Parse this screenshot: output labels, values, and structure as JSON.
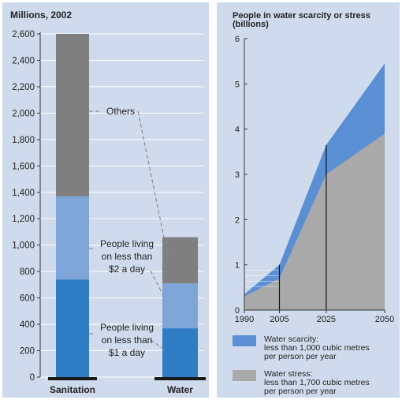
{
  "chart_data": [
    {
      "type": "bar",
      "stacked": true,
      "title": "Millions, 2002",
      "categories": [
        "Sanitation",
        "Water"
      ],
      "ylim": [
        0,
        2600
      ],
      "yticks": [
        0,
        200,
        400,
        600,
        800,
        1000,
        1200,
        1400,
        1600,
        1800,
        2000,
        2200,
        2400,
        2600
      ],
      "ytick_labels": [
        "0",
        "200",
        "400",
        "600",
        "800",
        "1,000",
        "1,200",
        "1,400",
        "1,600",
        "1,800",
        "2,000",
        "2,200",
        "2,400",
        "2,600"
      ],
      "series": [
        {
          "values": [
            740,
            370
          ],
          "color": "#2e7cc4"
        },
        {
          "values": [
            630,
            340
          ],
          "color": "#7ea4d8"
        },
        {
          "values": [
            1230,
            350
          ],
          "color": "#7f7f7f"
        }
      ],
      "annotations": {
        "others": "Others",
        "two_dollar": [
          "People living",
          "on less than",
          "$2 a day"
        ],
        "one_dollar": [
          "People living",
          "on less than",
          "$1 a day"
        ]
      },
      "grid": true
    },
    {
      "type": "area",
      "title": [
        "People in water scarcity or stress",
        "(billions)"
      ],
      "x": [
        1990,
        2005,
        2025,
        2050
      ],
      "xticks": [
        "1990",
        "2005",
        "2025",
        "2050"
      ],
      "ylim": [
        0,
        6
      ],
      "yticks": [
        "0",
        "1",
        "2",
        "3",
        "4",
        "5",
        "6"
      ],
      "series": [
        {
          "values": [
            0.3,
            0.7,
            3.0,
            3.9
          ],
          "color": "#a9a9a9"
        },
        {
          "values": [
            0.35,
            1.0,
            3.65,
            5.45
          ],
          "color": "#5b8fd4"
        }
      ],
      "legend": [
        {
          "color": "#5b8fd4",
          "lines": [
            "Water scarcity:",
            "less than 1,000 cubic metres",
            "per person per year"
          ]
        },
        {
          "color": "#a9a9a9",
          "lines": [
            "Water stress:",
            "less than 1,700 cubic metres",
            "per person per year"
          ]
        }
      ]
    }
  ]
}
